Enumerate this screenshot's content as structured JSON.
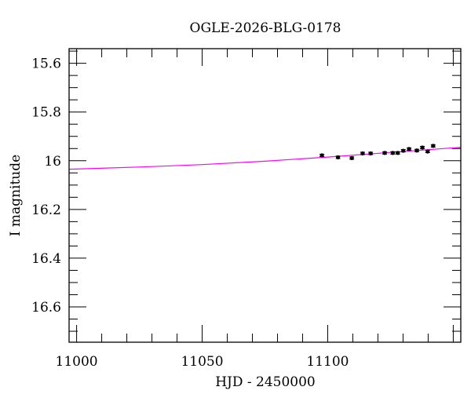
{
  "chart_data": {
    "type": "scatter",
    "title": "OGLE-2026-BLG-0178",
    "xlabel": "HJD - 2450000",
    "ylabel": "I magnitude",
    "xlim": [
      10997,
      11153
    ],
    "ylim": [
      16.745,
      15.54
    ],
    "y_inverted": true,
    "x_ticks": [
      11000,
      11050,
      11100
    ],
    "x_tick_labels": [
      "11000",
      "11050",
      "11100"
    ],
    "y_ticks": [
      15.6,
      15.8,
      16.0,
      16.2,
      16.4,
      16.6
    ],
    "y_tick_labels": [
      "15.6",
      "15.8",
      "16",
      "16.2",
      "16.4",
      "16.6"
    ],
    "grid": false,
    "legend": "none",
    "series": [
      {
        "kind": "points_with_errorbars",
        "color": "#000000",
        "x": [
          11097.7,
          11104.1,
          11109.6,
          11113.9,
          11117.1,
          11122.7,
          11125.9,
          11127.9,
          11130.1,
          11132.4,
          11135.5,
          11137.7,
          11139.8,
          11142.0
        ],
        "y": [
          15.978,
          15.986,
          15.989,
          15.97,
          15.97,
          15.968,
          15.968,
          15.968,
          15.959,
          15.952,
          15.958,
          15.946,
          15.962,
          15.939
        ],
        "yerr": [
          0.005,
          0.005,
          0.005,
          0.005,
          0.005,
          0.005,
          0.005,
          0.005,
          0.005,
          0.005,
          0.005,
          0.005,
          0.005,
          0.005
        ]
      },
      {
        "kind": "model_curve",
        "color": "#ff00ff",
        "x": [
          10997,
          11025,
          11050,
          11075,
          11100,
          11125,
          11153
        ],
        "y": [
          16.035,
          16.026,
          16.016,
          16.002,
          15.985,
          15.966,
          15.945
        ]
      }
    ]
  }
}
